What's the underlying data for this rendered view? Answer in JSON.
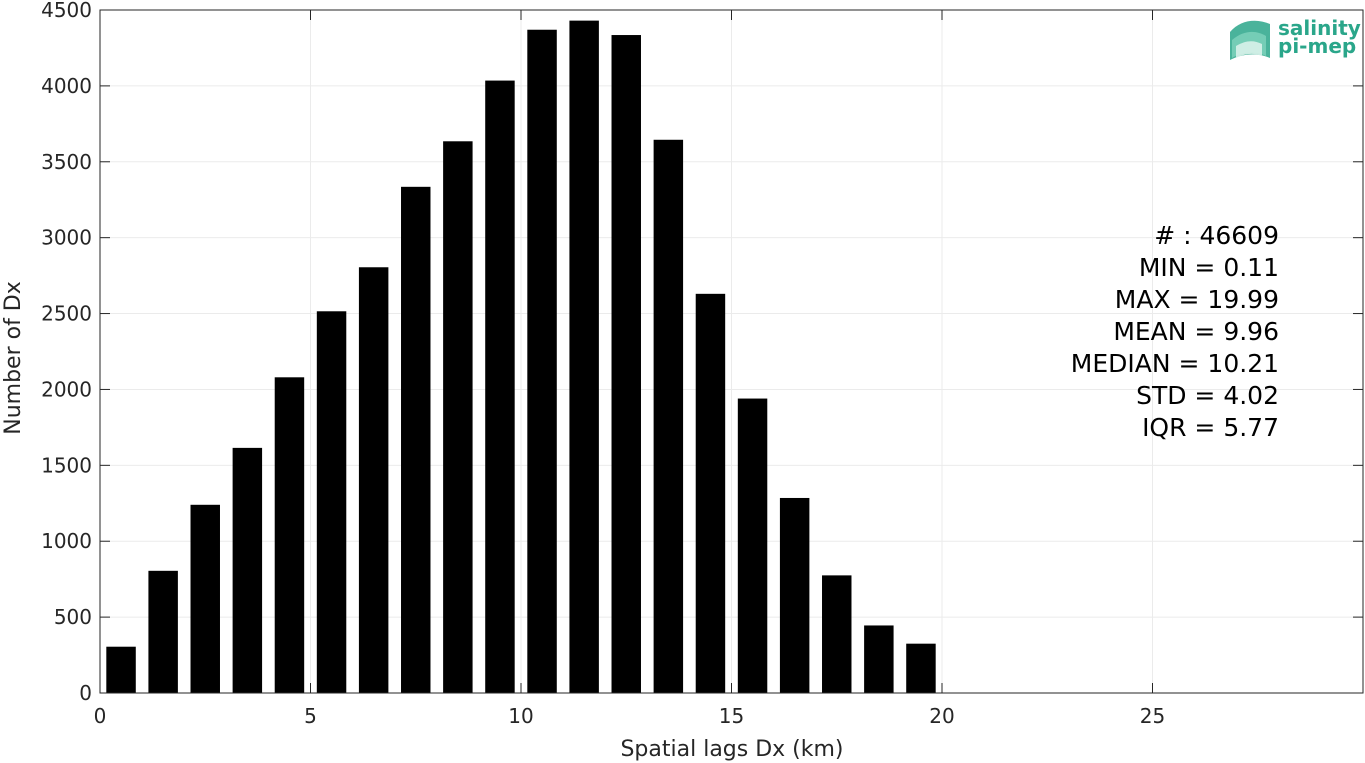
{
  "chart_data": {
    "type": "bar",
    "xlabel": "Spatial lags Dx (km)",
    "ylabel": "Number of Dx",
    "xlim": [
      0,
      30
    ],
    "ylim": [
      0,
      4500
    ],
    "xticks": [
      0,
      5,
      10,
      15,
      20,
      25
    ],
    "yticks": [
      0,
      500,
      1000,
      1500,
      2000,
      2500,
      3000,
      3500,
      4000,
      4500
    ],
    "grid": true,
    "bar_color": "#000000",
    "bar_width": 0.7,
    "x": [
      0.5,
      1.5,
      2.5,
      3.5,
      4.5,
      5.5,
      6.5,
      7.5,
      8.5,
      9.5,
      10.5,
      11.5,
      12.5,
      13.5,
      14.5,
      15.5,
      16.5,
      17.5,
      18.5,
      19.5
    ],
    "values": [
      305,
      805,
      1240,
      1615,
      2080,
      2515,
      2805,
      3335,
      3635,
      4035,
      4370,
      4430,
      4335,
      3645,
      2630,
      1940,
      1285,
      775,
      445,
      325
    ],
    "stats": [
      "# : 46609",
      "MIN = 0.11",
      "MAX =  19.99",
      "MEAN = 9.96",
      "MEDIAN = 10.21",
      "STD = 4.02",
      "IQR = 5.77"
    ]
  },
  "logo": {
    "line1": "salinity",
    "line2": "pi-mep",
    "color": "#2aa68a"
  }
}
